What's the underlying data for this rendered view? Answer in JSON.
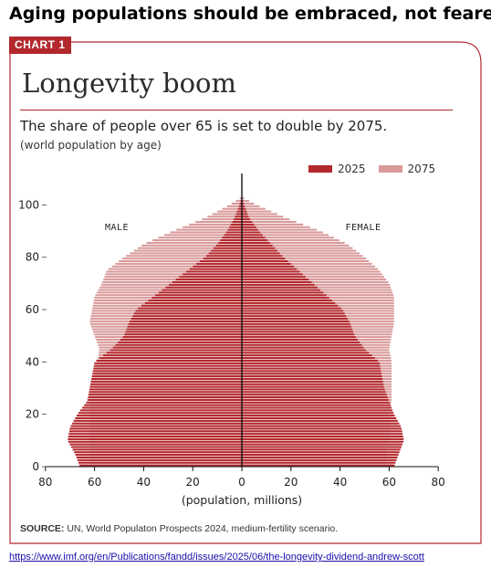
{
  "headline": "Aging populations should be embraced, not feared",
  "tag": "CHART 1",
  "title": "Longevity boom",
  "subtitle": "The share of people over 65 is set to double by 2075.",
  "note": "(world population by age)",
  "source_label": "SOURCE:",
  "source_text": " UN, World Populaton Prospects 2024, medium-fertility scenario.",
  "link": "https://www.imf.org/en/Publications/fandd/issues/2025/06/the-longevity-dividend-andrew-scott",
  "colors": {
    "accent": "#b3282d",
    "series_2025": "#b3282d",
    "series_2075": "#d99a9a",
    "frame": "#b3282d"
  },
  "chart_data": {
    "type": "population-pyramid",
    "title": "Longevity boom",
    "xlabel": "(population, millions)",
    "ylabel": "",
    "x_ticks": [
      "80",
      "60",
      "40",
      "20",
      "0",
      "20",
      "40",
      "60",
      "80"
    ],
    "y_ticks": [
      "0",
      "20",
      "40",
      "60",
      "80",
      "100"
    ],
    "xlim": [
      -80,
      80
    ],
    "ylim": [
      0,
      110
    ],
    "side_labels": {
      "left": "MALE",
      "right": "FEMALE"
    },
    "legend": [
      "2025",
      "2075"
    ],
    "age_knots": [
      0,
      5,
      10,
      15,
      20,
      25,
      30,
      35,
      40,
      45,
      50,
      55,
      60,
      65,
      70,
      75,
      80,
      85,
      90,
      95,
      100,
      103
    ],
    "series": [
      {
        "name": "2025",
        "male": [
          66,
          68,
          71,
          70,
          67,
          63,
          62,
          61,
          60,
          53,
          48,
          46,
          43,
          36,
          29,
          22,
          15,
          10,
          6,
          3,
          1,
          0
        ],
        "female": [
          62,
          64,
          66,
          65,
          62,
          60,
          58,
          57,
          56,
          50,
          46,
          44,
          41,
          35,
          29,
          23,
          17,
          12,
          7,
          3,
          1,
          0
        ]
      },
      {
        "name": "2075",
        "male": [
          62,
          62,
          62,
          62,
          62,
          62,
          62,
          60,
          59,
          58,
          60,
          62,
          61,
          60,
          57,
          55,
          48,
          40,
          28,
          15,
          5,
          0
        ],
        "female": [
          59,
          59,
          60,
          60,
          60,
          61,
          61,
          61,
          61,
          60,
          61,
          62,
          62,
          62,
          60,
          56,
          50,
          43,
          32,
          18,
          6,
          0
        ]
      }
    ]
  }
}
